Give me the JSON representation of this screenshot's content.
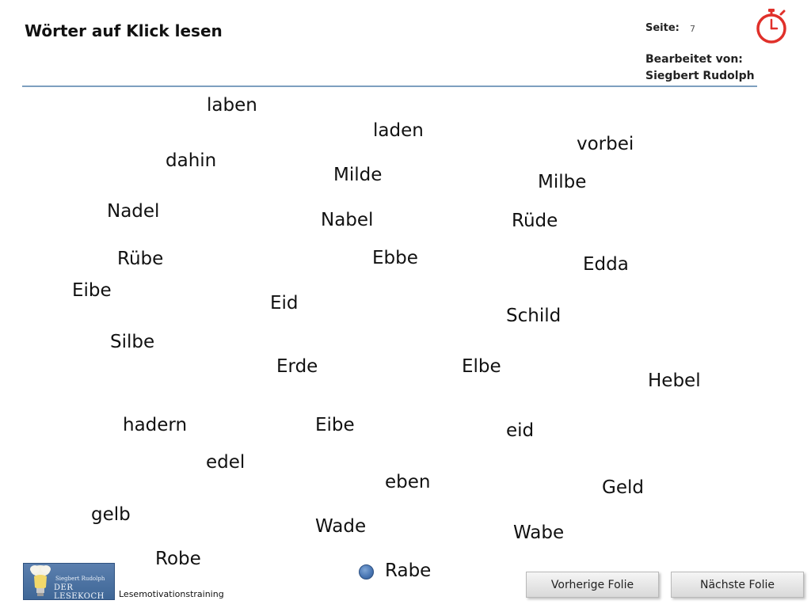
{
  "header": {
    "title": "Wörter auf Klick lesen",
    "page_label": "Seite:",
    "page_number": "7",
    "editor_label": "Bearbeitet von:",
    "editor_name": "Siegbert Rudolph",
    "timer_icon": "stopwatch-icon",
    "timer_color": "#e0302a",
    "rule_color": "#7d9fbf"
  },
  "words": [
    "laben",
    "laden",
    "vorbei",
    "dahin",
    "Milde",
    "Milbe",
    "Nadel",
    "Nabel",
    "Rüde",
    "Rübe",
    "Ebbe",
    "Edda",
    "Eibe",
    "Eid",
    "Schild",
    "Silbe",
    "Erde",
    "Elbe",
    "Hebel",
    "hadern",
    "Eibe",
    "eid",
    "edel",
    "eben",
    "Geld",
    "gelb",
    "Wade",
    "Wabe",
    "Robe",
    "Rabe"
  ],
  "marker": {
    "icon": "blue-dot-icon",
    "color": "#4a77b4"
  },
  "footer": {
    "logo_small": "Siegbert Rudolph",
    "logo_main": "DER LESEKOCH",
    "label": "Lesemotivationstraining",
    "prev_button": "Vorherige Folie",
    "next_button": "Nächste Folie"
  }
}
